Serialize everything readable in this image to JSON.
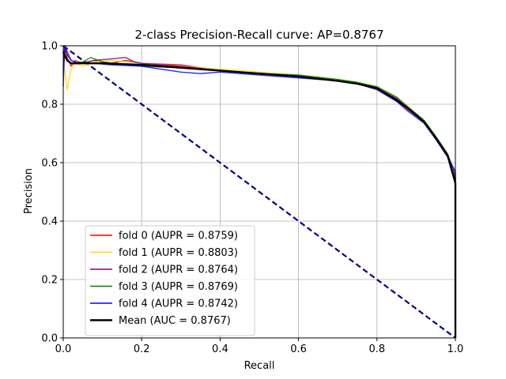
{
  "chart_data": {
    "type": "line",
    "title": "2-class Precision-Recall curve: AP=0.8767",
    "xlabel": "Recall",
    "ylabel": "Precision",
    "xlim": [
      0,
      1
    ],
    "ylim": [
      0,
      1
    ],
    "x_ticks": [
      "0.0",
      "0.2",
      "0.4",
      "0.6",
      "0.8",
      "1.0"
    ],
    "y_ticks": [
      "0.0",
      "0.2",
      "0.4",
      "0.6",
      "0.8",
      "1.0"
    ],
    "grid": true,
    "legend_position": "lower-left",
    "series": [
      {
        "name": "fold 0 (AUPR = 0.8759)",
        "color": "#ff0000",
        "points": [
          [
            0,
            0.92
          ],
          [
            0.005,
            0.99
          ],
          [
            0.01,
            0.96
          ],
          [
            0.02,
            0.93
          ],
          [
            0.03,
            0.95
          ],
          [
            0.05,
            0.94
          ],
          [
            0.08,
            0.95
          ],
          [
            0.12,
            0.94
          ],
          [
            0.16,
            0.95
          ],
          [
            0.2,
            0.94
          ],
          [
            0.3,
            0.935
          ],
          [
            0.4,
            0.915
          ],
          [
            0.5,
            0.905
          ],
          [
            0.6,
            0.895
          ],
          [
            0.7,
            0.88
          ],
          [
            0.75,
            0.87
          ],
          [
            0.8,
            0.85
          ],
          [
            0.85,
            0.81
          ],
          [
            0.88,
            0.78
          ],
          [
            0.92,
            0.74
          ],
          [
            0.95,
            0.68
          ],
          [
            0.98,
            0.62
          ],
          [
            1.0,
            0.55
          ],
          [
            1.0,
            0.0
          ]
        ]
      },
      {
        "name": "fold 1 (AUPR = 0.8803)",
        "color": "#ffd700",
        "points": [
          [
            0,
            0.96
          ],
          [
            0.005,
            0.9
          ],
          [
            0.01,
            0.85
          ],
          [
            0.02,
            0.92
          ],
          [
            0.03,
            0.94
          ],
          [
            0.05,
            0.93
          ],
          [
            0.08,
            0.945
          ],
          [
            0.12,
            0.95
          ],
          [
            0.2,
            0.94
          ],
          [
            0.3,
            0.93
          ],
          [
            0.4,
            0.92
          ],
          [
            0.5,
            0.91
          ],
          [
            0.6,
            0.9
          ],
          [
            0.7,
            0.885
          ],
          [
            0.75,
            0.875
          ],
          [
            0.8,
            0.86
          ],
          [
            0.85,
            0.82
          ],
          [
            0.88,
            0.79
          ],
          [
            0.92,
            0.745
          ],
          [
            0.95,
            0.69
          ],
          [
            0.98,
            0.63
          ],
          [
            1.0,
            0.56
          ],
          [
            1.0,
            0.0
          ]
        ]
      },
      {
        "name": "fold 2 (AUPR = 0.8764)",
        "color": "#800080",
        "points": [
          [
            0,
            0.9
          ],
          [
            0.005,
            1.0
          ],
          [
            0.01,
            0.98
          ],
          [
            0.02,
            0.95
          ],
          [
            0.04,
            0.94
          ],
          [
            0.08,
            0.95
          ],
          [
            0.12,
            0.955
          ],
          [
            0.16,
            0.96
          ],
          [
            0.18,
            0.945
          ],
          [
            0.2,
            0.94
          ],
          [
            0.3,
            0.93
          ],
          [
            0.4,
            0.915
          ],
          [
            0.5,
            0.905
          ],
          [
            0.6,
            0.895
          ],
          [
            0.7,
            0.88
          ],
          [
            0.75,
            0.87
          ],
          [
            0.8,
            0.855
          ],
          [
            0.85,
            0.82
          ],
          [
            0.88,
            0.785
          ],
          [
            0.92,
            0.74
          ],
          [
            0.95,
            0.685
          ],
          [
            0.98,
            0.625
          ],
          [
            1.0,
            0.55
          ],
          [
            1.0,
            0.0
          ]
        ]
      },
      {
        "name": "fold 3 (AUPR = 0.8769)",
        "color": "#008000",
        "points": [
          [
            0,
            0.93
          ],
          [
            0.005,
            0.97
          ],
          [
            0.01,
            0.95
          ],
          [
            0.02,
            0.94
          ],
          [
            0.05,
            0.945
          ],
          [
            0.07,
            0.96
          ],
          [
            0.1,
            0.945
          ],
          [
            0.13,
            0.94
          ],
          [
            0.18,
            0.935
          ],
          [
            0.2,
            0.93
          ],
          [
            0.3,
            0.925
          ],
          [
            0.4,
            0.915
          ],
          [
            0.5,
            0.905
          ],
          [
            0.6,
            0.9
          ],
          [
            0.7,
            0.885
          ],
          [
            0.75,
            0.875
          ],
          [
            0.8,
            0.86
          ],
          [
            0.85,
            0.825
          ],
          [
            0.88,
            0.79
          ],
          [
            0.92,
            0.745
          ],
          [
            0.95,
            0.69
          ],
          [
            0.98,
            0.63
          ],
          [
            1.0,
            0.56
          ],
          [
            1.0,
            0.0
          ]
        ]
      },
      {
        "name": "fold 4 (AUPR = 0.8742)",
        "color": "#0000ff",
        "points": [
          [
            0,
            0.86
          ],
          [
            0.003,
            1.0
          ],
          [
            0.01,
            0.97
          ],
          [
            0.02,
            0.95
          ],
          [
            0.04,
            0.94
          ],
          [
            0.08,
            0.94
          ],
          [
            0.12,
            0.935
          ],
          [
            0.2,
            0.93
          ],
          [
            0.3,
            0.91
          ],
          [
            0.35,
            0.905
          ],
          [
            0.4,
            0.91
          ],
          [
            0.5,
            0.9
          ],
          [
            0.6,
            0.89
          ],
          [
            0.7,
            0.88
          ],
          [
            0.75,
            0.87
          ],
          [
            0.8,
            0.85
          ],
          [
            0.85,
            0.81
          ],
          [
            0.88,
            0.775
          ],
          [
            0.92,
            0.735
          ],
          [
            0.95,
            0.68
          ],
          [
            0.98,
            0.62
          ],
          [
            1.0,
            0.57
          ],
          [
            1.0,
            0.0
          ]
        ]
      },
      {
        "name": "Mean (AUC = 0.8767)",
        "color": "#000000",
        "points": [
          [
            0,
            0.98
          ],
          [
            0.01,
            0.95
          ],
          [
            0.02,
            0.94
          ],
          [
            0.05,
            0.94
          ],
          [
            0.1,
            0.94
          ],
          [
            0.2,
            0.935
          ],
          [
            0.3,
            0.925
          ],
          [
            0.4,
            0.915
          ],
          [
            0.5,
            0.905
          ],
          [
            0.6,
            0.895
          ],
          [
            0.7,
            0.88
          ],
          [
            0.75,
            0.87
          ],
          [
            0.8,
            0.855
          ],
          [
            0.85,
            0.815
          ],
          [
            0.88,
            0.785
          ],
          [
            0.92,
            0.74
          ],
          [
            0.95,
            0.685
          ],
          [
            0.98,
            0.625
          ],
          [
            1.0,
            0.53
          ],
          [
            1.0,
            0.0
          ]
        ]
      }
    ],
    "reference_line": {
      "color": "#000080",
      "style": "dashed",
      "points": [
        [
          0,
          1
        ],
        [
          1,
          0
        ]
      ]
    }
  }
}
